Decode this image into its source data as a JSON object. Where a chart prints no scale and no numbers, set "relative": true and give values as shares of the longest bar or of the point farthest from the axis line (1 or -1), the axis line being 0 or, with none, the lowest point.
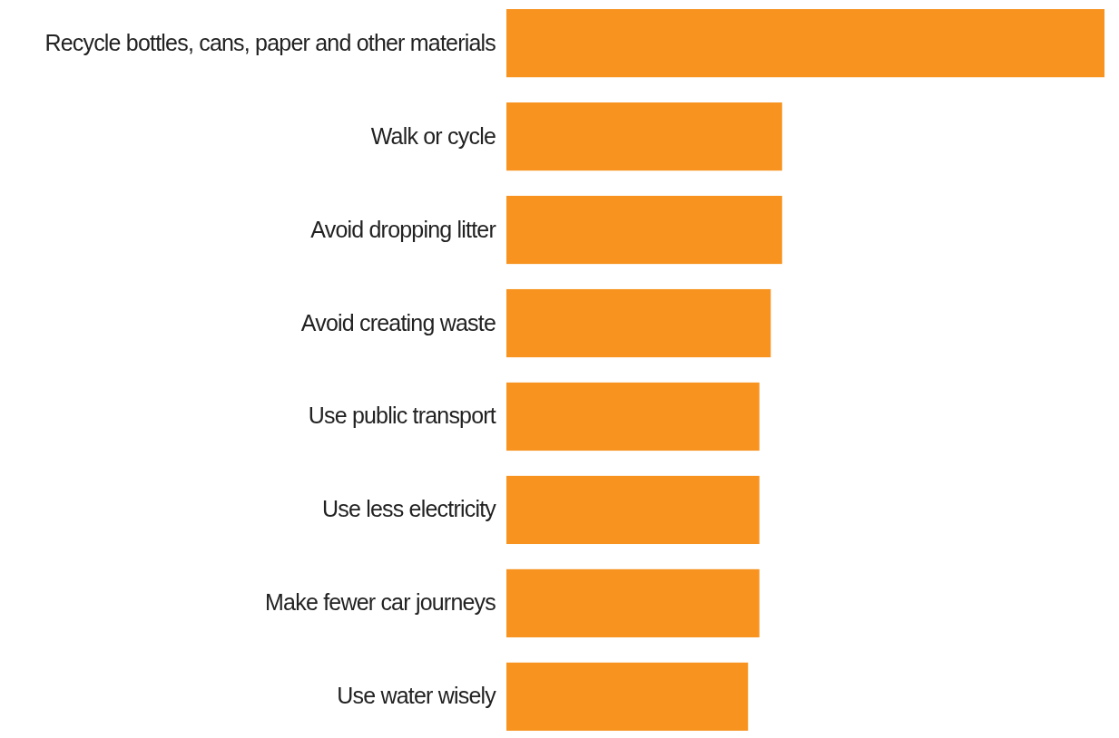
{
  "chart_data": {
    "type": "bar",
    "orientation": "horizontal",
    "relative": true,
    "categories": [
      "Recycle bottles, cans, paper and other materials",
      "Walk or cycle",
      "Avoid dropping litter",
      "Avoid creating waste",
      "Use public transport",
      "Use less electricity",
      "Make fewer car journeys",
      "Use water wisely"
    ],
    "values": [
      1,
      0.461,
      0.461,
      0.442,
      0.423,
      0.423,
      0.423,
      0.404
    ],
    "color": "#f7931e"
  }
}
